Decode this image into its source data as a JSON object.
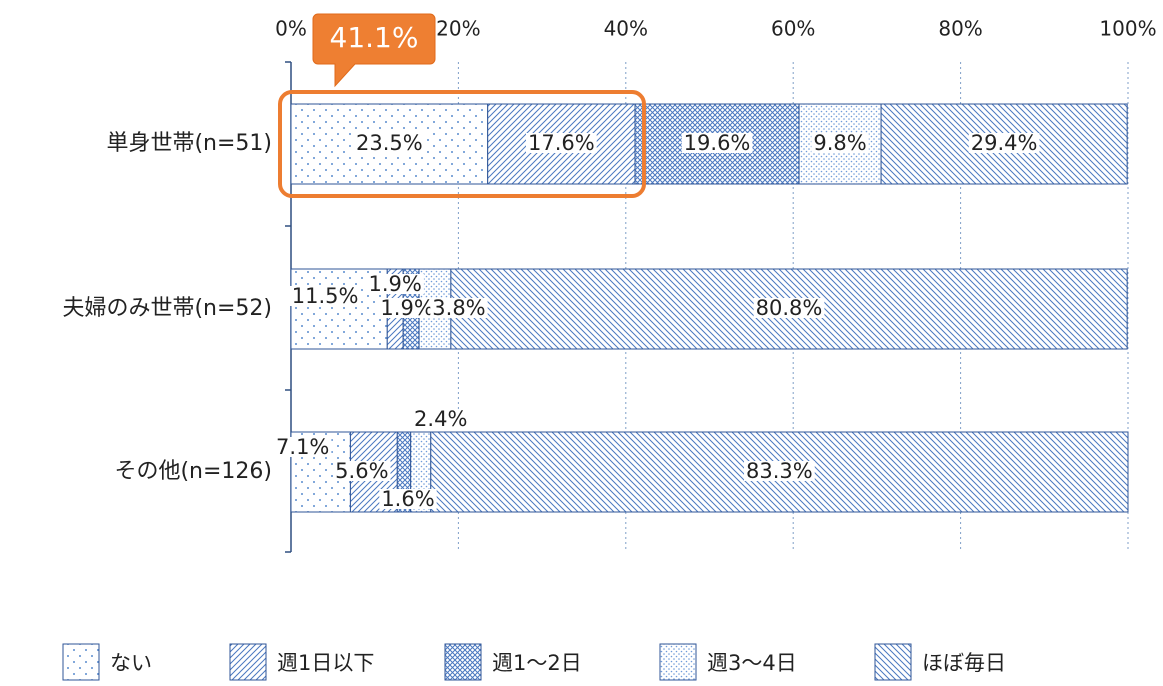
{
  "chart_data": {
    "type": "stacked-barh",
    "categories": [
      "単身世帯(n=51)",
      "夫婦のみ世帯(n=52)",
      "その他(n=126)"
    ],
    "series": [
      {
        "name": "ない",
        "color": "#5b8ccf",
        "values": [
          23.5,
          11.5,
          7.1
        ],
        "value_labels": [
          "23.5%",
          "11.5%",
          "7.1%"
        ]
      },
      {
        "name": "週1日以下",
        "color": "#4a78c0",
        "values": [
          17.6,
          1.9,
          5.6
        ],
        "value_labels": [
          "17.6%",
          "1.9%",
          "5.6%"
        ]
      },
      {
        "name": "週1～2日",
        "color": "#4a78c0",
        "values": [
          19.6,
          1.9,
          1.6
        ],
        "value_labels": [
          "19.6%",
          "1.9%",
          "1.6%"
        ]
      },
      {
        "name": "週3～4日",
        "color": "#6f9bd8",
        "values": [
          9.8,
          3.8,
          2.4
        ],
        "value_labels": [
          "9.8%",
          "3.8%",
          "2.4%"
        ]
      },
      {
        "name": "ほぼ毎日",
        "color": "#4a78c0",
        "values": [
          29.4,
          80.8,
          83.3
        ],
        "value_labels": [
          "29.4%",
          "80.8%",
          "83.3%"
        ]
      }
    ],
    "xlim": [
      0,
      100
    ],
    "xticks": [
      {
        "value": 0,
        "label": "0%"
      },
      {
        "value": 20,
        "label": "20%"
      },
      {
        "value": 40,
        "label": "40%"
      },
      {
        "value": 60,
        "label": "60%"
      },
      {
        "value": 80,
        "label": "80%"
      },
      {
        "value": 100,
        "label": "100%"
      }
    ],
    "grid": true,
    "legend": "bottom",
    "annotation": "41.1%"
  }
}
